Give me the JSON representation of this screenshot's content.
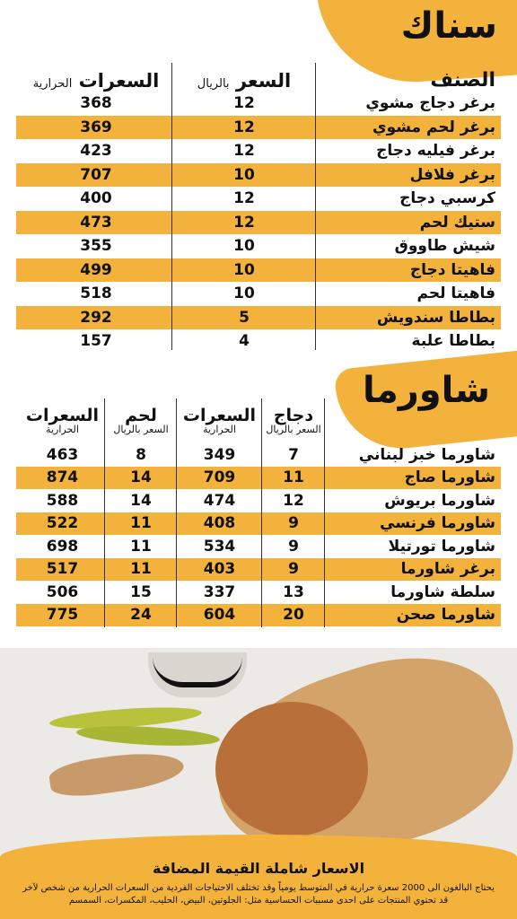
{
  "snack": {
    "title": "سناك",
    "headers": {
      "item": "الصنف",
      "price": "السعر",
      "price_unit": "بالريال",
      "calories": "السعرات",
      "calories_unit": "الحرارية"
    },
    "rows": [
      {
        "item": "برغر دجاج مشوي",
        "price": "12",
        "cal": "368"
      },
      {
        "item": "برغر لحم مشوي",
        "price": "12",
        "cal": "369"
      },
      {
        "item": "برغر فيليه دجاج",
        "price": "12",
        "cal": "423"
      },
      {
        "item": "برغر فلافل",
        "price": "10",
        "cal": "707"
      },
      {
        "item": "كرسبي دجاج",
        "price": "12",
        "cal": "400"
      },
      {
        "item": "ستيك لحم",
        "price": "12",
        "cal": "473"
      },
      {
        "item": "شيش طاووق",
        "price": "10",
        "cal": "355"
      },
      {
        "item": "فاهيتا دجاج",
        "price": "10",
        "cal": "499"
      },
      {
        "item": "فاهيتا لحم",
        "price": "10",
        "cal": "518"
      },
      {
        "item": "بطاطا سندويش",
        "price": "5",
        "cal": "292"
      },
      {
        "item": "بطاطا علبة",
        "price": "4",
        "cal": "157"
      }
    ]
  },
  "shawarma": {
    "title": "شاورما",
    "headers": {
      "chicken": "دجاج",
      "chicken_sub": "السعر بالريال",
      "chicken_cal": "السعرات",
      "chicken_cal_sub": "الحرارية",
      "meat": "لحم",
      "meat_sub": "السعر بالريال",
      "meat_cal": "السعرات",
      "meat_cal_sub": "الحرارية"
    },
    "rows": [
      {
        "item": "شاورما خبز لبناني",
        "cp": "7",
        "cc": "349",
        "mp": "8",
        "mc": "463"
      },
      {
        "item": "شاورما صاج",
        "cp": "11",
        "cc": "709",
        "mp": "14",
        "mc": "874"
      },
      {
        "item": "شاورما بريوش",
        "cp": "12",
        "cc": "474",
        "mp": "14",
        "mc": "588"
      },
      {
        "item": "شاورما فرنسي",
        "cp": "9",
        "cc": "408",
        "mp": "11",
        "mc": "522"
      },
      {
        "item": "شاورما تورتيلا",
        "cp": "9",
        "cc": "534",
        "mp": "11",
        "mc": "698"
      },
      {
        "item": "برغر شاورما",
        "cp": "9",
        "cc": "403",
        "mp": "11",
        "mc": "517"
      },
      {
        "item": "سلطة شاورما",
        "cp": "13",
        "cc": "337",
        "mp": "15",
        "mc": "506"
      },
      {
        "item": "شاورما صحن",
        "cp": "20",
        "cc": "604",
        "mp": "24",
        "mc": "775"
      }
    ]
  },
  "footer": {
    "vat_note": "الاسعار شاملة القيمة المضافة",
    "calorie_note": "يحتاج البالغون الى 2000 سعرة حرارية في المتوسط يومياً وقد تختلف الاحتياجات الفردية من السعرات الحرارية من شخص لآخر",
    "allergen_note": "قد تحتوي المنتجات على احدى مسببات الحساسية مثل: الجلوتين، البيض، الحليب، المكسرات، السمسم"
  },
  "colors": {
    "accent": "#f3b23c"
  }
}
